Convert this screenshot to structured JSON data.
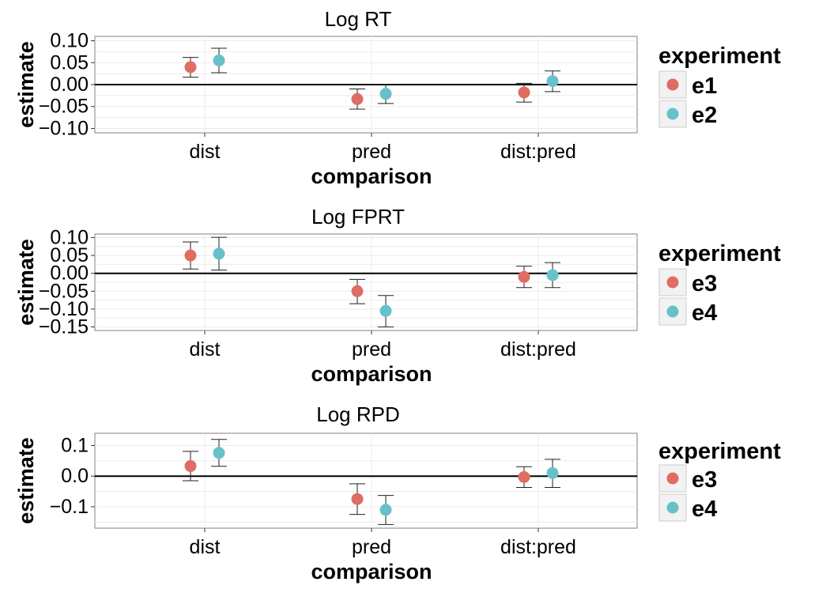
{
  "chart_data": [
    {
      "type": "scatter",
      "title": "Log RT",
      "xlabel": "comparison",
      "ylabel": "estimate",
      "categories": [
        "dist",
        "pred",
        "dist:pred"
      ],
      "ylim": [
        -0.11,
        0.11
      ],
      "yticks": [
        0.1,
        0.05,
        0.0,
        -0.05,
        -0.1
      ],
      "ytick_labels": [
        "0.10",
        "0.05",
        "0.00",
        "−0.05",
        "−0.10"
      ],
      "reference_line": 0,
      "grid": true,
      "legend": {
        "title": "experiment",
        "placement": "right"
      },
      "series": [
        {
          "name": "e1",
          "color": "#E06C64",
          "estimate": [
            0.04,
            -0.033,
            -0.018
          ],
          "lower": [
            0.017,
            -0.056,
            -0.04
          ],
          "upper": [
            0.062,
            -0.01,
            0.003
          ]
        },
        {
          "name": "e2",
          "color": "#66C2C8",
          "estimate": [
            0.055,
            -0.021,
            0.008
          ],
          "lower": [
            0.027,
            -0.043,
            -0.016
          ],
          "upper": [
            0.083,
            0.001,
            0.031
          ]
        }
      ]
    },
    {
      "type": "scatter",
      "title": "Log FPRT",
      "xlabel": "comparison",
      "ylabel": "estimate",
      "categories": [
        "dist",
        "pred",
        "dist:pred"
      ],
      "ylim": [
        -0.16,
        0.11
      ],
      "yticks": [
        0.1,
        0.05,
        0.0,
        -0.05,
        -0.1,
        -0.15
      ],
      "ytick_labels": [
        "0.10",
        "0.05",
        "0.00",
        "−0.05",
        "−0.10",
        "−0.15"
      ],
      "reference_line": 0,
      "grid": true,
      "legend": {
        "title": "experiment",
        "placement": "right"
      },
      "series": [
        {
          "name": "e3",
          "color": "#E06C64",
          "estimate": [
            0.05,
            -0.05,
            -0.01
          ],
          "lower": [
            0.012,
            -0.085,
            -0.04
          ],
          "upper": [
            0.088,
            -0.017,
            0.02
          ]
        },
        {
          "name": "e4",
          "color": "#66C2C8",
          "estimate": [
            0.055,
            -0.105,
            -0.005
          ],
          "lower": [
            0.009,
            -0.15,
            -0.04
          ],
          "upper": [
            0.101,
            -0.062,
            0.03
          ]
        }
      ]
    },
    {
      "type": "scatter",
      "title": "Log RPD",
      "xlabel": "comparison",
      "ylabel": "estimate",
      "categories": [
        "dist",
        "pred",
        "dist:pred"
      ],
      "ylim": [
        -0.17,
        0.14
      ],
      "yticks": [
        0.1,
        0.0,
        -0.1
      ],
      "ytick_labels": [
        "0.1",
        "0.0",
        "−0.1"
      ],
      "reference_line": 0,
      "grid": true,
      "legend": {
        "title": "experiment",
        "placement": "right"
      },
      "series": [
        {
          "name": "e3",
          "color": "#E06C64",
          "estimate": [
            0.033,
            -0.075,
            -0.003
          ],
          "lower": [
            -0.015,
            -0.125,
            -0.037
          ],
          "upper": [
            0.081,
            -0.025,
            0.031
          ]
        },
        {
          "name": "e4",
          "color": "#66C2C8",
          "estimate": [
            0.076,
            -0.11,
            0.01
          ],
          "lower": [
            0.032,
            -0.158,
            -0.037
          ],
          "upper": [
            0.12,
            -0.063,
            0.055
          ]
        }
      ]
    }
  ]
}
